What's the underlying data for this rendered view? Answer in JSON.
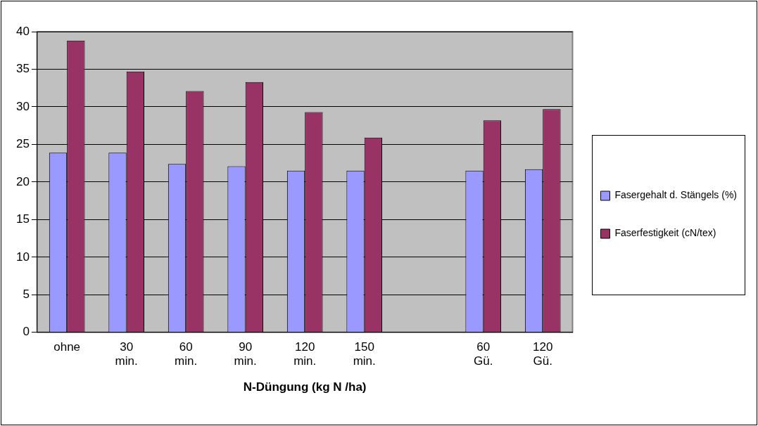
{
  "chart_data": {
    "type": "bar",
    "xlabel": "N-Düngung (kg N /ha)",
    "categories": [
      "ohne",
      "30 min.",
      "60 min.",
      "90 min.",
      "120 min.",
      "150 min.",
      null,
      "60 Gü.",
      "120 Gü."
    ],
    "series": [
      {
        "name": "Fasergehalt d. Stängels (%)",
        "color": "#9999ff",
        "values": [
          23.9,
          23.9,
          22.4,
          22.1,
          21.5,
          21.5,
          null,
          21.5,
          21.7
        ]
      },
      {
        "name": "Faserfestigkeit (cN/tex)",
        "color": "#993366",
        "values": [
          38.8,
          34.7,
          32.1,
          33.3,
          29.3,
          25.9,
          null,
          28.2,
          29.7
        ]
      }
    ],
    "ylim": [
      0,
      40
    ],
    "yticks": [
      0,
      5,
      10,
      15,
      20,
      25,
      30,
      35,
      40
    ],
    "grid": "y",
    "legend": "right"
  }
}
